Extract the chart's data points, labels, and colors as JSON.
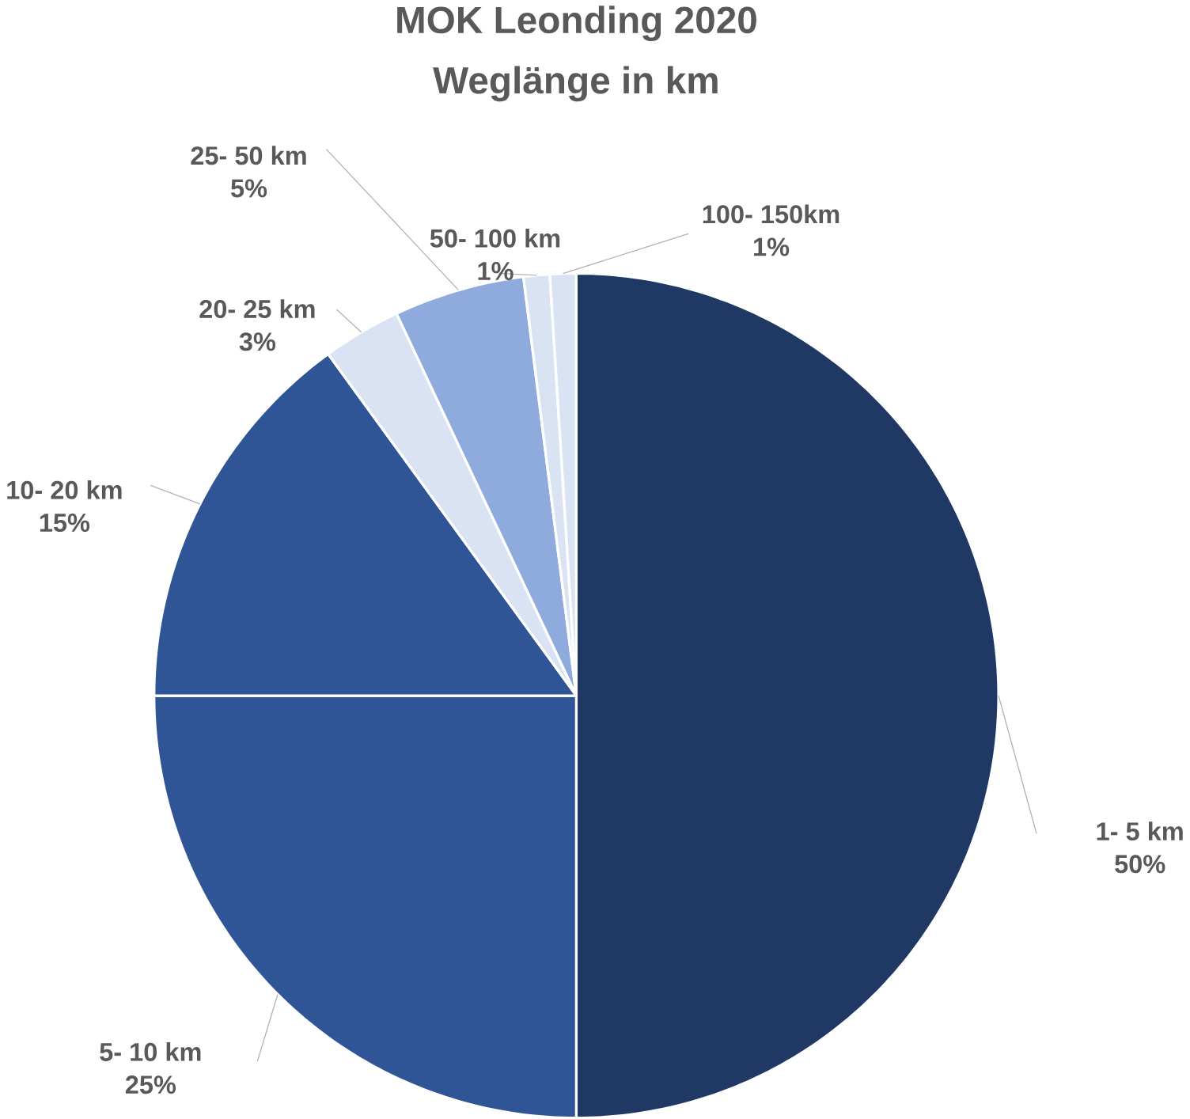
{
  "chart_data": {
    "type": "pie",
    "title": "MOK Leonding 2020",
    "subtitle": "Weglänge in km",
    "categories": [
      "1-   5 km",
      "5-  10 km",
      "10-  20 km",
      "20-  25 km",
      "25-  50 km",
      "50- 100 km",
      "100- 150km"
    ],
    "values": [
      50,
      25,
      15,
      3,
      5,
      1,
      1
    ],
    "value_labels": [
      "50%",
      "25%",
      "15%",
      "3%",
      "5%",
      "1%",
      "1%"
    ],
    "colors": [
      "#203864",
      "#2f5597",
      "#2f5597",
      "#dae3f3",
      "#8faadc",
      "#dae3f3",
      "#dae3f3"
    ]
  }
}
